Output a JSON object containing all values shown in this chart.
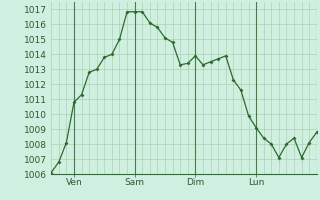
{
  "background_color": "#cff0e0",
  "plot_bg_color": "#cff0e0",
  "line_color": "#2d6a2d",
  "marker_color": "#2d6a2d",
  "grid_color_major": "#a8c8a8",
  "grid_color_minor": "#c0dcc0",
  "vline_color": "#4a7a4a",
  "axis_color": "#2d6a2d",
  "ylim": [
    1006,
    1017.5
  ],
  "yticks": [
    1006,
    1007,
    1008,
    1009,
    1010,
    1011,
    1012,
    1013,
    1014,
    1015,
    1016,
    1017
  ],
  "x_values": [
    0,
    1,
    2,
    3,
    4,
    5,
    6,
    7,
    8,
    9,
    10,
    11,
    12,
    13,
    14,
    15,
    16,
    17,
    18,
    19,
    20,
    21,
    22,
    23,
    24,
    25,
    26,
    27,
    28,
    29,
    30,
    31,
    32,
    33,
    34,
    35
  ],
  "y_values": [
    1006.1,
    1006.8,
    1008.1,
    1010.8,
    1011.3,
    1012.8,
    1013.0,
    1013.8,
    1014.0,
    1015.0,
    1016.85,
    1016.85,
    1016.85,
    1016.1,
    1015.8,
    1015.1,
    1014.8,
    1013.3,
    1013.4,
    1013.9,
    1013.3,
    1013.5,
    1013.7,
    1013.9,
    1012.3,
    1011.6,
    1009.9,
    1009.1,
    1008.4,
    1008.0,
    1007.1,
    1008.0,
    1008.4,
    1007.1,
    1008.1,
    1008.8
  ],
  "vline_positions": [
    3,
    11,
    19,
    27,
    35
  ],
  "xtick_labels": [
    "Ven",
    "Sam",
    "Dim",
    "Lun"
  ],
  "xtick_positions": [
    3,
    11,
    19,
    27
  ],
  "tick_fontsize": 6.5,
  "xlim": [
    0,
    35
  ]
}
